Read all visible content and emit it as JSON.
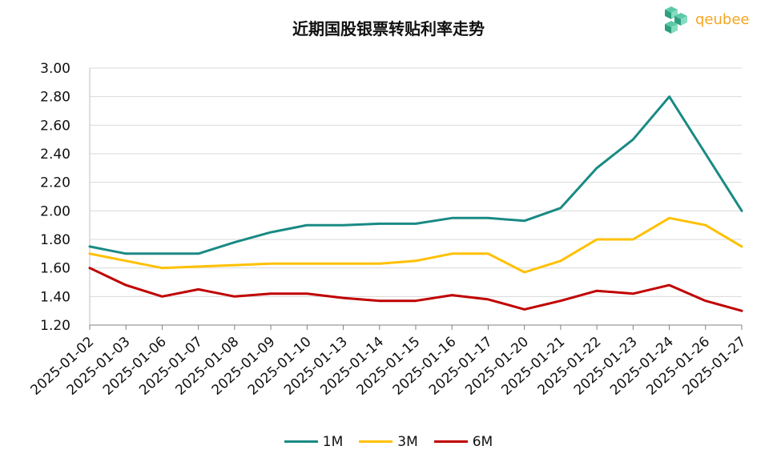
{
  "logo": {
    "text": "qeubee",
    "icon": "cube-cluster-icon"
  },
  "chart_data": {
    "type": "line",
    "title": "近期国股银票转贴利率走势",
    "xlabel": "",
    "ylabel": "",
    "categories": [
      "2025-01-02",
      "2025-01-03",
      "2025-01-06",
      "2025-01-07",
      "2025-01-08",
      "2025-01-09",
      "2025-01-10",
      "2025-01-13",
      "2025-01-14",
      "2025-01-15",
      "2025-01-16",
      "2025-01-17",
      "2025-01-20",
      "2025-01-21",
      "2025-01-22",
      "2025-01-23",
      "2025-01-24",
      "2025-01-26",
      "2025-01-27"
    ],
    "ylim": [
      1.2,
      3.0
    ],
    "yticks": [
      "1.20",
      "1.40",
      "1.60",
      "1.80",
      "2.00",
      "2.20",
      "2.40",
      "2.60",
      "2.80",
      "3.00"
    ],
    "grid": true,
    "legend": "bottom",
    "series": [
      {
        "name": "1M",
        "color": "#1a8a84",
        "values": [
          1.75,
          1.7,
          1.7,
          1.7,
          1.78,
          1.85,
          1.9,
          1.9,
          1.91,
          1.91,
          1.95,
          1.95,
          1.93,
          2.02,
          2.3,
          2.5,
          2.8,
          2.4,
          2.0
        ]
      },
      {
        "name": "3M",
        "color": "#ffc000",
        "values": [
          1.7,
          1.65,
          1.6,
          1.61,
          1.62,
          1.63,
          1.63,
          1.63,
          1.63,
          1.65,
          1.7,
          1.7,
          1.57,
          1.65,
          1.8,
          1.8,
          1.95,
          1.9,
          1.75
        ]
      },
      {
        "name": "6M",
        "color": "#c00000",
        "values": [
          1.6,
          1.48,
          1.4,
          1.45,
          1.4,
          1.42,
          1.42,
          1.39,
          1.37,
          1.37,
          1.41,
          1.38,
          1.31,
          1.37,
          1.44,
          1.42,
          1.48,
          1.37,
          1.3
        ]
      }
    ]
  }
}
